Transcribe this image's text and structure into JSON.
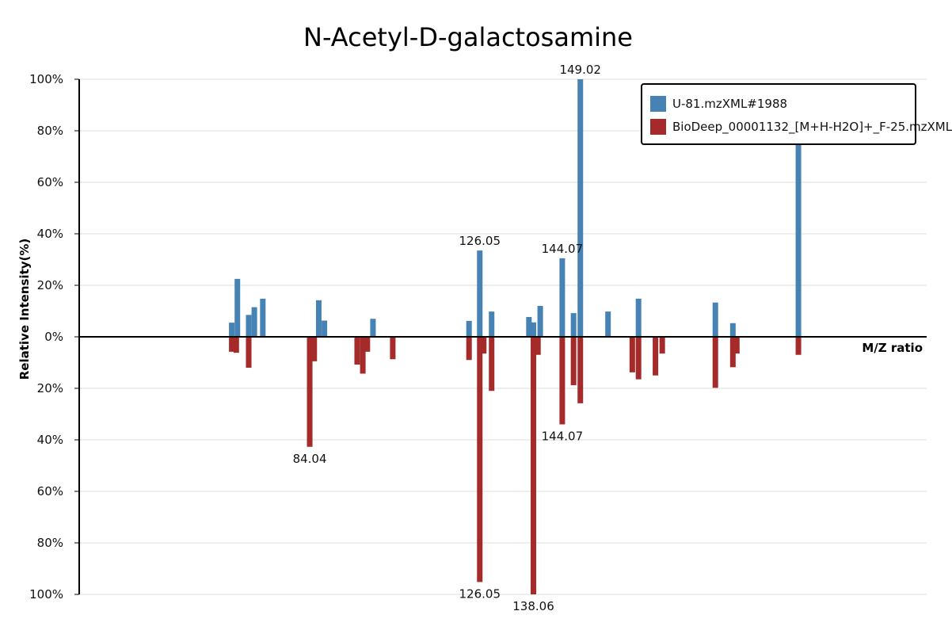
{
  "chart_data": {
    "type": "bar",
    "title": "N-Acetyl-D-galactosamine",
    "xlabel": "M/Z ratio",
    "ylabel": "Relative Intensity(%)",
    "ylim_top": [
      0,
      100
    ],
    "ylim_bottom": [
      0,
      100
    ],
    "y_ticks_top": [
      "0%",
      "20%",
      "40%",
      "60%",
      "80%",
      "100%"
    ],
    "y_ticks_bottom": [
      "20%",
      "40%",
      "60%",
      "80%",
      "100%"
    ],
    "grid": true,
    "legend_position": "top-right",
    "series": [
      {
        "name": "U-81.mzXML#1988",
        "color": "#4682b4",
        "direction": "up",
        "points": [
          {
            "x": 57.0,
            "y": 5.5
          },
          {
            "x": 58.0,
            "y": 22.5
          },
          {
            "x": 60.0,
            "y": 8.5
          },
          {
            "x": 61.0,
            "y": 11.5
          },
          {
            "x": 62.5,
            "y": 14.8
          },
          {
            "x": 72.4,
            "y": 14.2
          },
          {
            "x": 73.4,
            "y": 6.3
          },
          {
            "x": 82.0,
            "y": 7.0
          },
          {
            "x": 99.0,
            "y": 6.2
          },
          {
            "x": 100.9,
            "y": 33.5,
            "label": "126.05"
          },
          {
            "x": 103.0,
            "y": 9.8
          },
          {
            "x": 109.6,
            "y": 7.7
          },
          {
            "x": 110.4,
            "y": 5.6
          },
          {
            "x": 111.6,
            "y": 12.0
          },
          {
            "x": 115.5,
            "y": 30.5,
            "label": "144.07"
          },
          {
            "x": 117.5,
            "y": 9.2
          },
          {
            "x": 118.7,
            "y": 100,
            "label": "149.02"
          },
          {
            "x": 123.6,
            "y": 9.8
          },
          {
            "x": 129.0,
            "y": 14.8
          },
          {
            "x": 142.6,
            "y": 13.3
          },
          {
            "x": 145.7,
            "y": 5.3
          },
          {
            "x": 157.3,
            "y": 75.0
          }
        ]
      },
      {
        "name": "BioDeep_00001132_[M+H-H2O]+_F-25.mzXML",
        "color": "#a52a2a",
        "direction": "down",
        "points": [
          {
            "x": 57.0,
            "y": 5.8
          },
          {
            "x": 57.8,
            "y": 6.2
          },
          {
            "x": 60.0,
            "y": 12.0
          },
          {
            "x": 70.8,
            "y": 42.7,
            "label": "84.04"
          },
          {
            "x": 71.6,
            "y": 9.5
          },
          {
            "x": 79.2,
            "y": 10.8
          },
          {
            "x": 80.2,
            "y": 14.3
          },
          {
            "x": 81.0,
            "y": 5.8
          },
          {
            "x": 85.5,
            "y": 8.7
          },
          {
            "x": 99.0,
            "y": 9.0
          },
          {
            "x": 100.9,
            "y": 95.2,
            "label": "126.05"
          },
          {
            "x": 101.6,
            "y": 6.5
          },
          {
            "x": 103.0,
            "y": 21.0
          },
          {
            "x": 110.4,
            "y": 100,
            "label": "138.06"
          },
          {
            "x": 111.2,
            "y": 7.0
          },
          {
            "x": 115.5,
            "y": 34.0,
            "label": "144.07"
          },
          {
            "x": 117.5,
            "y": 18.8
          },
          {
            "x": 118.7,
            "y": 25.8
          },
          {
            "x": 127.9,
            "y": 13.8
          },
          {
            "x": 129.0,
            "y": 16.5
          },
          {
            "x": 132.0,
            "y": 15.0
          },
          {
            "x": 133.2,
            "y": 6.5
          },
          {
            "x": 142.6,
            "y": 19.8
          },
          {
            "x": 145.7,
            "y": 11.8
          },
          {
            "x": 146.4,
            "y": 6.5
          },
          {
            "x": 157.3,
            "y": 7.0
          }
        ]
      }
    ]
  }
}
